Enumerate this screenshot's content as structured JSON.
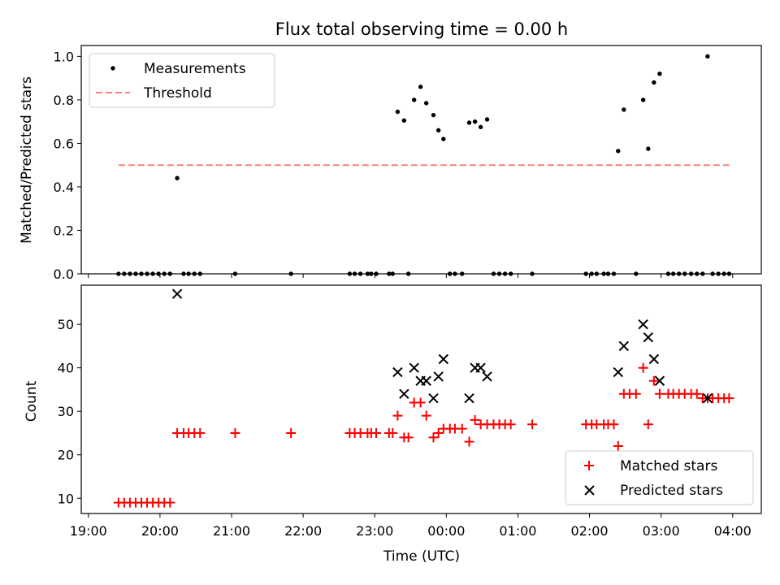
{
  "figure": {
    "title": "Flux total observing time = 0.00 h"
  },
  "chart_data": [
    {
      "type": "scatter",
      "ylabel": "Matched/Predicted stars",
      "ylim": [
        0,
        1.05
      ],
      "yticks": [
        "0.0",
        "0.2",
        "0.4",
        "0.6",
        "0.8",
        "1.0"
      ],
      "xlim": [
        18.9,
        28.4
      ],
      "legend_position": "upper-left",
      "legend": [
        "Measurements",
        "Threshold"
      ],
      "threshold": {
        "value": 0.5,
        "x_start": 19.42,
        "x_end": 27.95,
        "color": "#ff7f7f",
        "style": "dashed"
      },
      "measurements": {
        "name": "Measurements",
        "color": "#000000",
        "x": [
          19.42,
          19.5,
          19.58,
          19.66,
          19.74,
          19.82,
          19.9,
          19.98,
          20.06,
          20.14,
          20.24,
          20.33,
          20.4,
          20.48,
          20.56,
          21.05,
          21.83,
          22.65,
          22.72,
          22.8,
          22.9,
          22.95,
          23.02,
          23.2,
          23.25,
          23.32,
          23.41,
          23.47,
          23.55,
          23.64,
          23.72,
          23.82,
          23.89,
          23.96,
          24.05,
          24.12,
          24.22,
          24.32,
          24.4,
          24.48,
          24.57,
          24.66,
          24.74,
          24.82,
          24.9,
          25.2,
          25.95,
          26.03,
          26.1,
          26.2,
          26.26,
          26.34,
          26.4,
          26.48,
          26.65,
          26.75,
          26.82,
          26.9,
          26.98,
          27.1,
          27.17,
          27.25,
          27.33,
          27.42,
          27.5,
          27.58,
          27.65,
          27.72,
          27.8,
          27.88,
          27.95
        ],
        "y": [
          0,
          0,
          0,
          0,
          0,
          0,
          0,
          0,
          0,
          0,
          0.44,
          0,
          0,
          0,
          0,
          0,
          0,
          0,
          0,
          0,
          0,
          0,
          0,
          0,
          0,
          0.745,
          0.705,
          0,
          0.8,
          0.86,
          0.785,
          0.73,
          0.66,
          0.62,
          0,
          0,
          0,
          0.695,
          0.7,
          0.675,
          0.71,
          0,
          0,
          0,
          0,
          0,
          0,
          0,
          0,
          0,
          0,
          0,
          0.565,
          0.755,
          0,
          0.8,
          0.575,
          0.88,
          0.92,
          0,
          0,
          0,
          0,
          0,
          0,
          0,
          1.0,
          0,
          0,
          0,
          0
        ]
      }
    },
    {
      "type": "scatter",
      "xlabel": "Time (UTC)",
      "ylabel": "Count",
      "ylim": [
        6.5,
        59
      ],
      "yticks": [
        "10",
        "20",
        "30",
        "40",
        "50"
      ],
      "xlim": [
        18.9,
        28.4
      ],
      "xticks": [
        "19:00",
        "20:00",
        "21:00",
        "22:00",
        "23:00",
        "00:00",
        "01:00",
        "02:00",
        "03:00",
        "04:00"
      ],
      "legend_position": "lower-right",
      "legend": [
        "Matched stars",
        "Predicted stars"
      ],
      "series": [
        {
          "name": "Matched stars",
          "marker": "plus",
          "color": "#ff0000",
          "x": [
            19.42,
            19.5,
            19.58,
            19.66,
            19.74,
            19.82,
            19.9,
            19.98,
            20.06,
            20.14,
            20.24,
            20.33,
            20.4,
            20.48,
            20.56,
            21.05,
            21.83,
            22.65,
            22.72,
            22.8,
            22.9,
            22.95,
            23.02,
            23.2,
            23.25,
            23.32,
            23.41,
            23.47,
            23.55,
            23.64,
            23.72,
            23.82,
            23.89,
            23.96,
            24.05,
            24.12,
            24.22,
            24.32,
            24.4,
            24.48,
            24.57,
            24.66,
            24.74,
            24.82,
            24.9,
            25.2,
            25.95,
            26.03,
            26.1,
            26.2,
            26.26,
            26.34,
            26.4,
            26.48,
            26.56,
            26.65,
            26.75,
            26.82,
            26.9,
            26.98,
            27.1,
            27.17,
            27.25,
            27.33,
            27.42,
            27.5,
            27.58,
            27.65,
            27.72,
            27.8,
            27.88,
            27.95
          ],
          "y": [
            9,
            9,
            9,
            9,
            9,
            9,
            9,
            9,
            9,
            9,
            25,
            25,
            25,
            25,
            25,
            25,
            25,
            25,
            25,
            25,
            25,
            25,
            25,
            25,
            25,
            29,
            24,
            24,
            32,
            32,
            29,
            24,
            25,
            26,
            26,
            26,
            26,
            23,
            28,
            27,
            27,
            27,
            27,
            27,
            27,
            27,
            27,
            27,
            27,
            27,
            27,
            27,
            22,
            34,
            34,
            34,
            40,
            27,
            37,
            34,
            34,
            34,
            34,
            34,
            34,
            34,
            33,
            33,
            33,
            33,
            33,
            33
          ]
        },
        {
          "name": "Predicted stars",
          "marker": "x",
          "color": "#000000",
          "x": [
            20.24,
            23.32,
            23.41,
            23.55,
            23.64,
            23.72,
            23.82,
            23.89,
            23.96,
            24.32,
            24.4,
            24.48,
            24.57,
            26.4,
            26.48,
            26.75,
            26.82,
            26.9,
            26.98,
            27.65
          ],
          "y": [
            57,
            39,
            34,
            40,
            37,
            37,
            33,
            38,
            42,
            33,
            40,
            40,
            38,
            39,
            45,
            50,
            47,
            42,
            37,
            33
          ]
        }
      ]
    }
  ]
}
